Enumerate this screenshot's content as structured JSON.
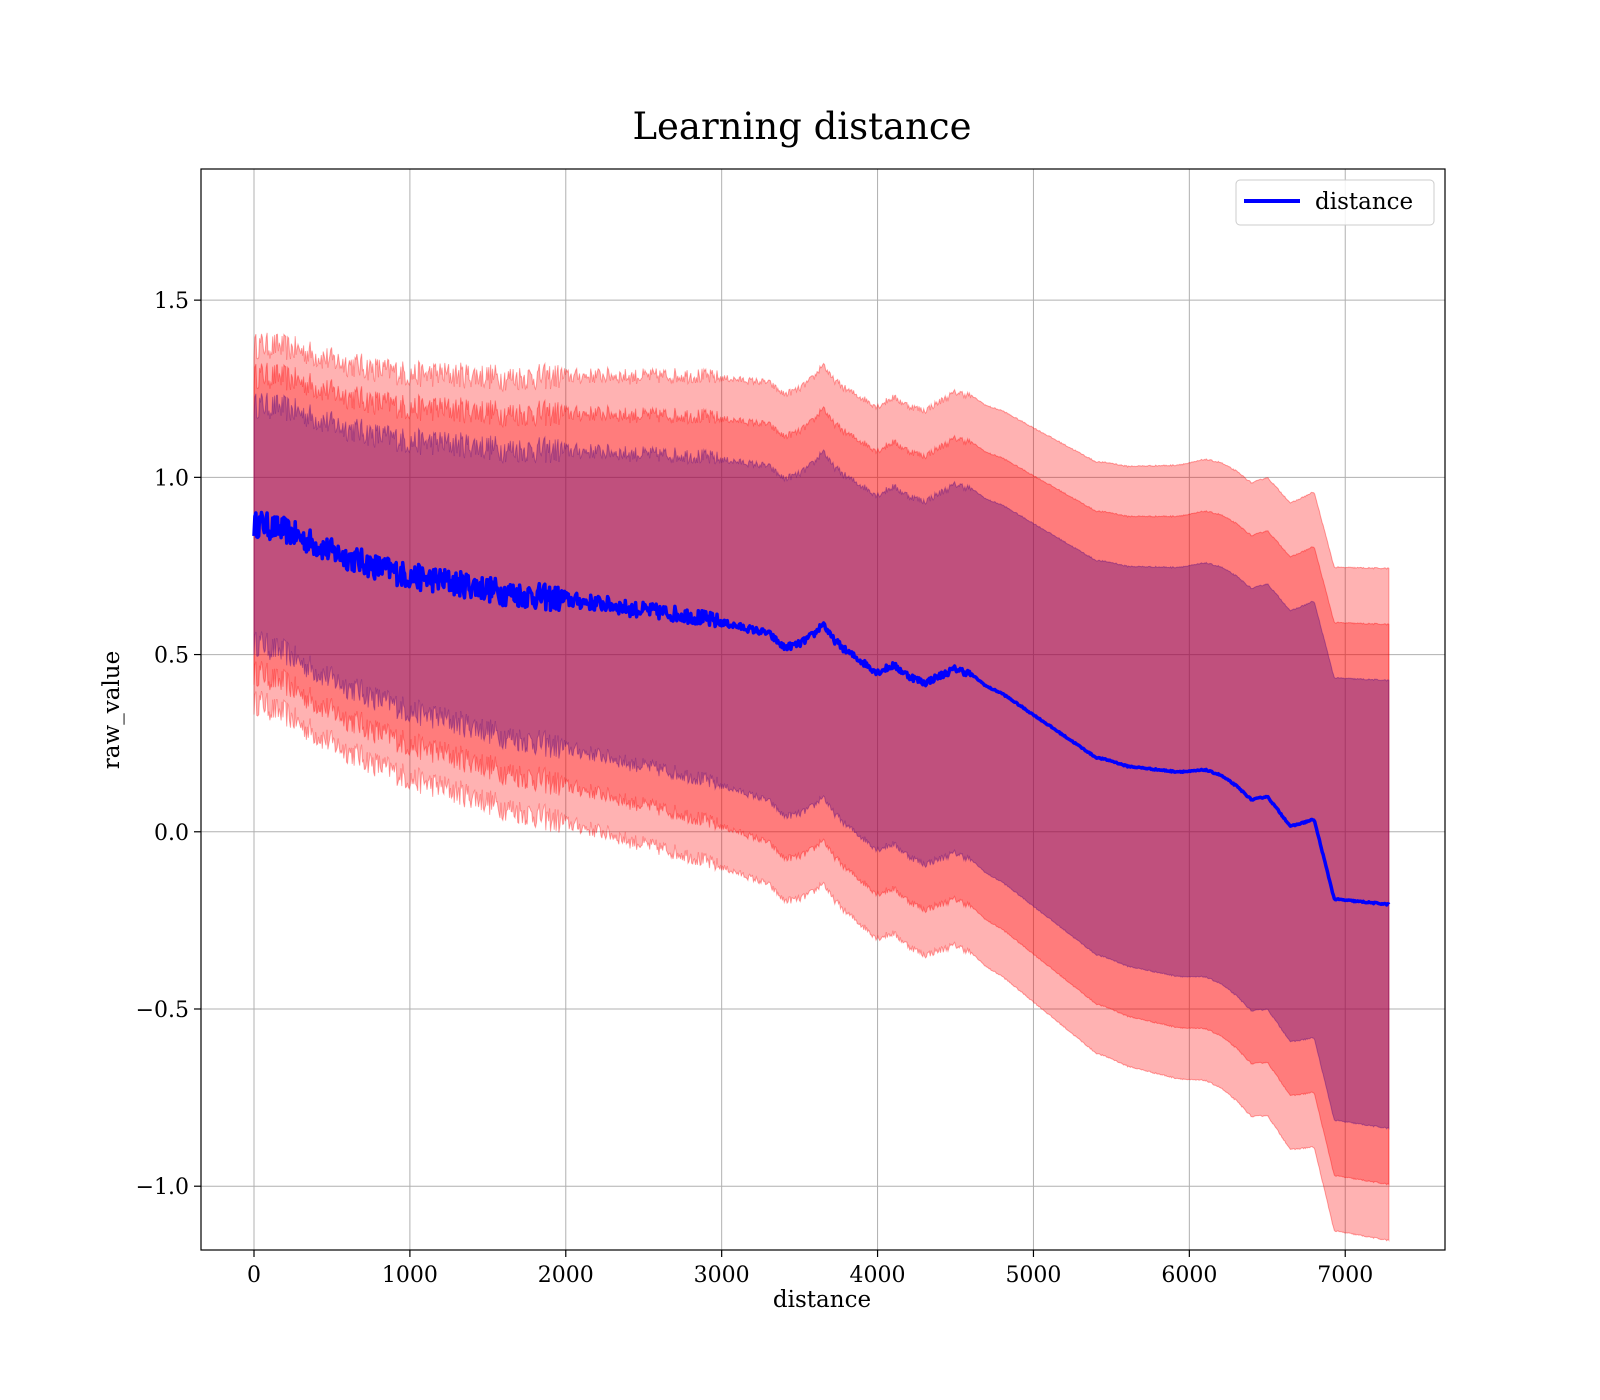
{
  "chart_data": {
    "type": "line",
    "title": "Learning distance",
    "xlabel": "distance",
    "ylabel": "raw_value",
    "xlim": [
      -340,
      7640
    ],
    "ylim": [
      -1.18,
      1.87
    ],
    "x_ticks": [
      0,
      1000,
      2000,
      3000,
      4000,
      5000,
      6000,
      7000
    ],
    "x_tick_labels": [
      "0",
      "1000",
      "2000",
      "3000",
      "4000",
      "5000",
      "6000",
      "7000"
    ],
    "y_ticks": [
      -1.0,
      -0.5,
      0.0,
      0.5,
      1.0,
      1.5
    ],
    "y_tick_labels": [
      "−1.0",
      "−0.5",
      "0.0",
      "0.5",
      "1.0",
      "1.5"
    ],
    "grid": true,
    "legend": {
      "position": "top-right",
      "entries": [
        {
          "label": "distance",
          "color": "#0000ff"
        }
      ]
    },
    "colors": {
      "line": "#0000ff",
      "band": "#ff0000",
      "band_inner": "#4b0082"
    },
    "series": [
      {
        "name": "distance",
        "x": [
          0,
          50,
          100,
          150,
          200,
          250,
          300,
          400,
          500,
          600,
          700,
          800,
          900,
          1000,
          1100,
          1200,
          1300,
          1400,
          1500,
          1600,
          1700,
          1800,
          1900,
          2000,
          2100,
          2200,
          2300,
          2400,
          2500,
          2600,
          2700,
          2800,
          2900,
          3000,
          3100,
          3200,
          3300,
          3400,
          3500,
          3600,
          3650,
          3700,
          3800,
          3900,
          4000,
          4100,
          4200,
          4300,
          4400,
          4500,
          4600,
          4700,
          4800,
          4900,
          5000,
          5100,
          5200,
          5300,
          5400,
          5500,
          5600,
          5700,
          5800,
          5900,
          6000,
          6100,
          6200,
          6300,
          6400,
          6500,
          6650,
          6800,
          6930,
          7280
        ],
        "y": [
          0.865,
          0.87,
          0.86,
          0.855,
          0.85,
          0.84,
          0.83,
          0.81,
          0.79,
          0.775,
          0.76,
          0.745,
          0.735,
          0.72,
          0.715,
          0.71,
          0.7,
          0.695,
          0.685,
          0.675,
          0.67,
          0.665,
          0.66,
          0.655,
          0.65,
          0.645,
          0.64,
          0.63,
          0.625,
          0.62,
          0.615,
          0.61,
          0.6,
          0.59,
          0.58,
          0.57,
          0.56,
          0.52,
          0.53,
          0.56,
          0.59,
          0.55,
          0.51,
          0.48,
          0.45,
          0.47,
          0.44,
          0.42,
          0.44,
          0.46,
          0.445,
          0.41,
          0.39,
          0.36,
          0.33,
          0.3,
          0.27,
          0.24,
          0.21,
          0.2,
          0.185,
          0.18,
          0.175,
          0.17,
          0.17,
          0.175,
          0.16,
          0.13,
          0.09,
          0.1,
          0.015,
          0.035,
          -0.19,
          -0.205
        ],
        "std": [
          0.42,
          0.42,
          0.425,
          0.43,
          0.43,
          0.435,
          0.44,
          0.445,
          0.45,
          0.455,
          0.46,
          0.465,
          0.47,
          0.475,
          0.48,
          0.485,
          0.49,
          0.495,
          0.5,
          0.505,
          0.51,
          0.515,
          0.52,
          0.525,
          0.53,
          0.535,
          0.54,
          0.545,
          0.55,
          0.555,
          0.56,
          0.565,
          0.57,
          0.575,
          0.58,
          0.585,
          0.59,
          0.595,
          0.6,
          0.605,
          0.61,
          0.61,
          0.615,
          0.62,
          0.625,
          0.63,
          0.635,
          0.64,
          0.645,
          0.65,
          0.655,
          0.66,
          0.665,
          0.67,
          0.675,
          0.68,
          0.685,
          0.69,
          0.695,
          0.7,
          0.705,
          0.71,
          0.715,
          0.72,
          0.725,
          0.73,
          0.735,
          0.74,
          0.745,
          0.75,
          0.76,
          0.77,
          0.78,
          0.79
        ]
      }
    ],
    "band_multipliers": [
      0.8,
      1.0,
      1.2
    ]
  }
}
